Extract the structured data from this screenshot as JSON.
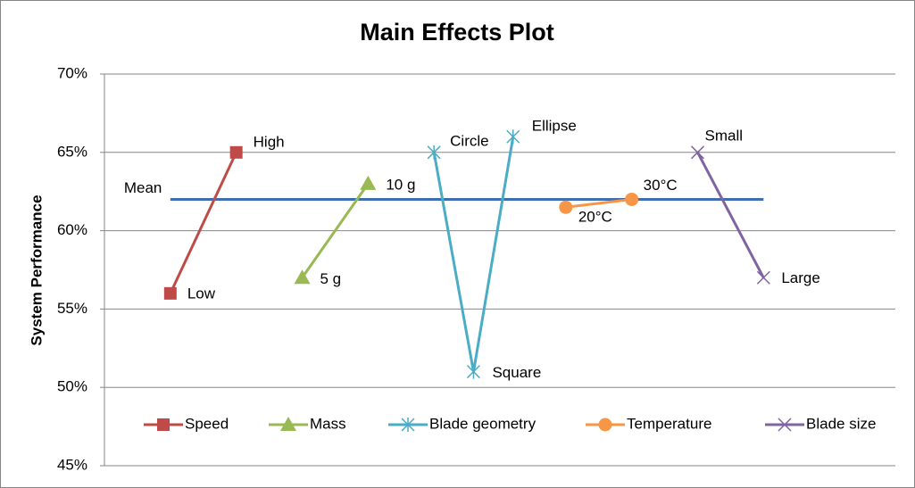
{
  "chart_data": {
    "type": "scatter",
    "title": "Main Effects Plot",
    "y_label": "System Performance",
    "xlim": [
      0,
      12
    ],
    "ylim": [
      45,
      70
    ],
    "yticks": [
      {
        "value": 45,
        "label": "45%"
      },
      {
        "value": 50,
        "label": "50%"
      },
      {
        "value": 55,
        "label": "55%"
      },
      {
        "value": 60,
        "label": "60%"
      },
      {
        "value": 65,
        "label": "65%"
      },
      {
        "value": 70,
        "label": "70%"
      }
    ],
    "grid": true,
    "legend": "bottom",
    "mean": {
      "label": "Mean",
      "value": 62,
      "x": [
        1,
        10
      ],
      "color": "#3e6eb0"
    },
    "series": [
      {
        "name": "Speed",
        "color": "#be4b48",
        "marker": "square",
        "x": [
          1,
          2
        ],
        "values": [
          56,
          65
        ],
        "point_labels": [
          "Low",
          "High"
        ]
      },
      {
        "name": "Mass",
        "color": "#98b954",
        "marker": "triangle",
        "x": [
          3,
          4
        ],
        "values": [
          57,
          63
        ],
        "point_labels": [
          "5 g",
          "10 g"
        ]
      },
      {
        "name": "Blade geometry",
        "color": "#4aacc5",
        "marker": "asterisk",
        "x": [
          5,
          5.6,
          6.2
        ],
        "values": [
          65,
          51,
          66
        ],
        "point_labels": [
          "Circle",
          "Square",
          "Ellipse"
        ]
      },
      {
        "name": "Temperature",
        "color": "#f79646",
        "marker": "circle",
        "x": [
          7,
          8
        ],
        "values": [
          61.5,
          62
        ],
        "point_labels": [
          "20°C",
          "30°C"
        ]
      },
      {
        "name": "Blade size",
        "color": "#8064a2",
        "marker": "cross",
        "x": [
          9,
          10
        ],
        "values": [
          65,
          57
        ],
        "point_labels": [
          "Small",
          "Large"
        ]
      }
    ]
  }
}
